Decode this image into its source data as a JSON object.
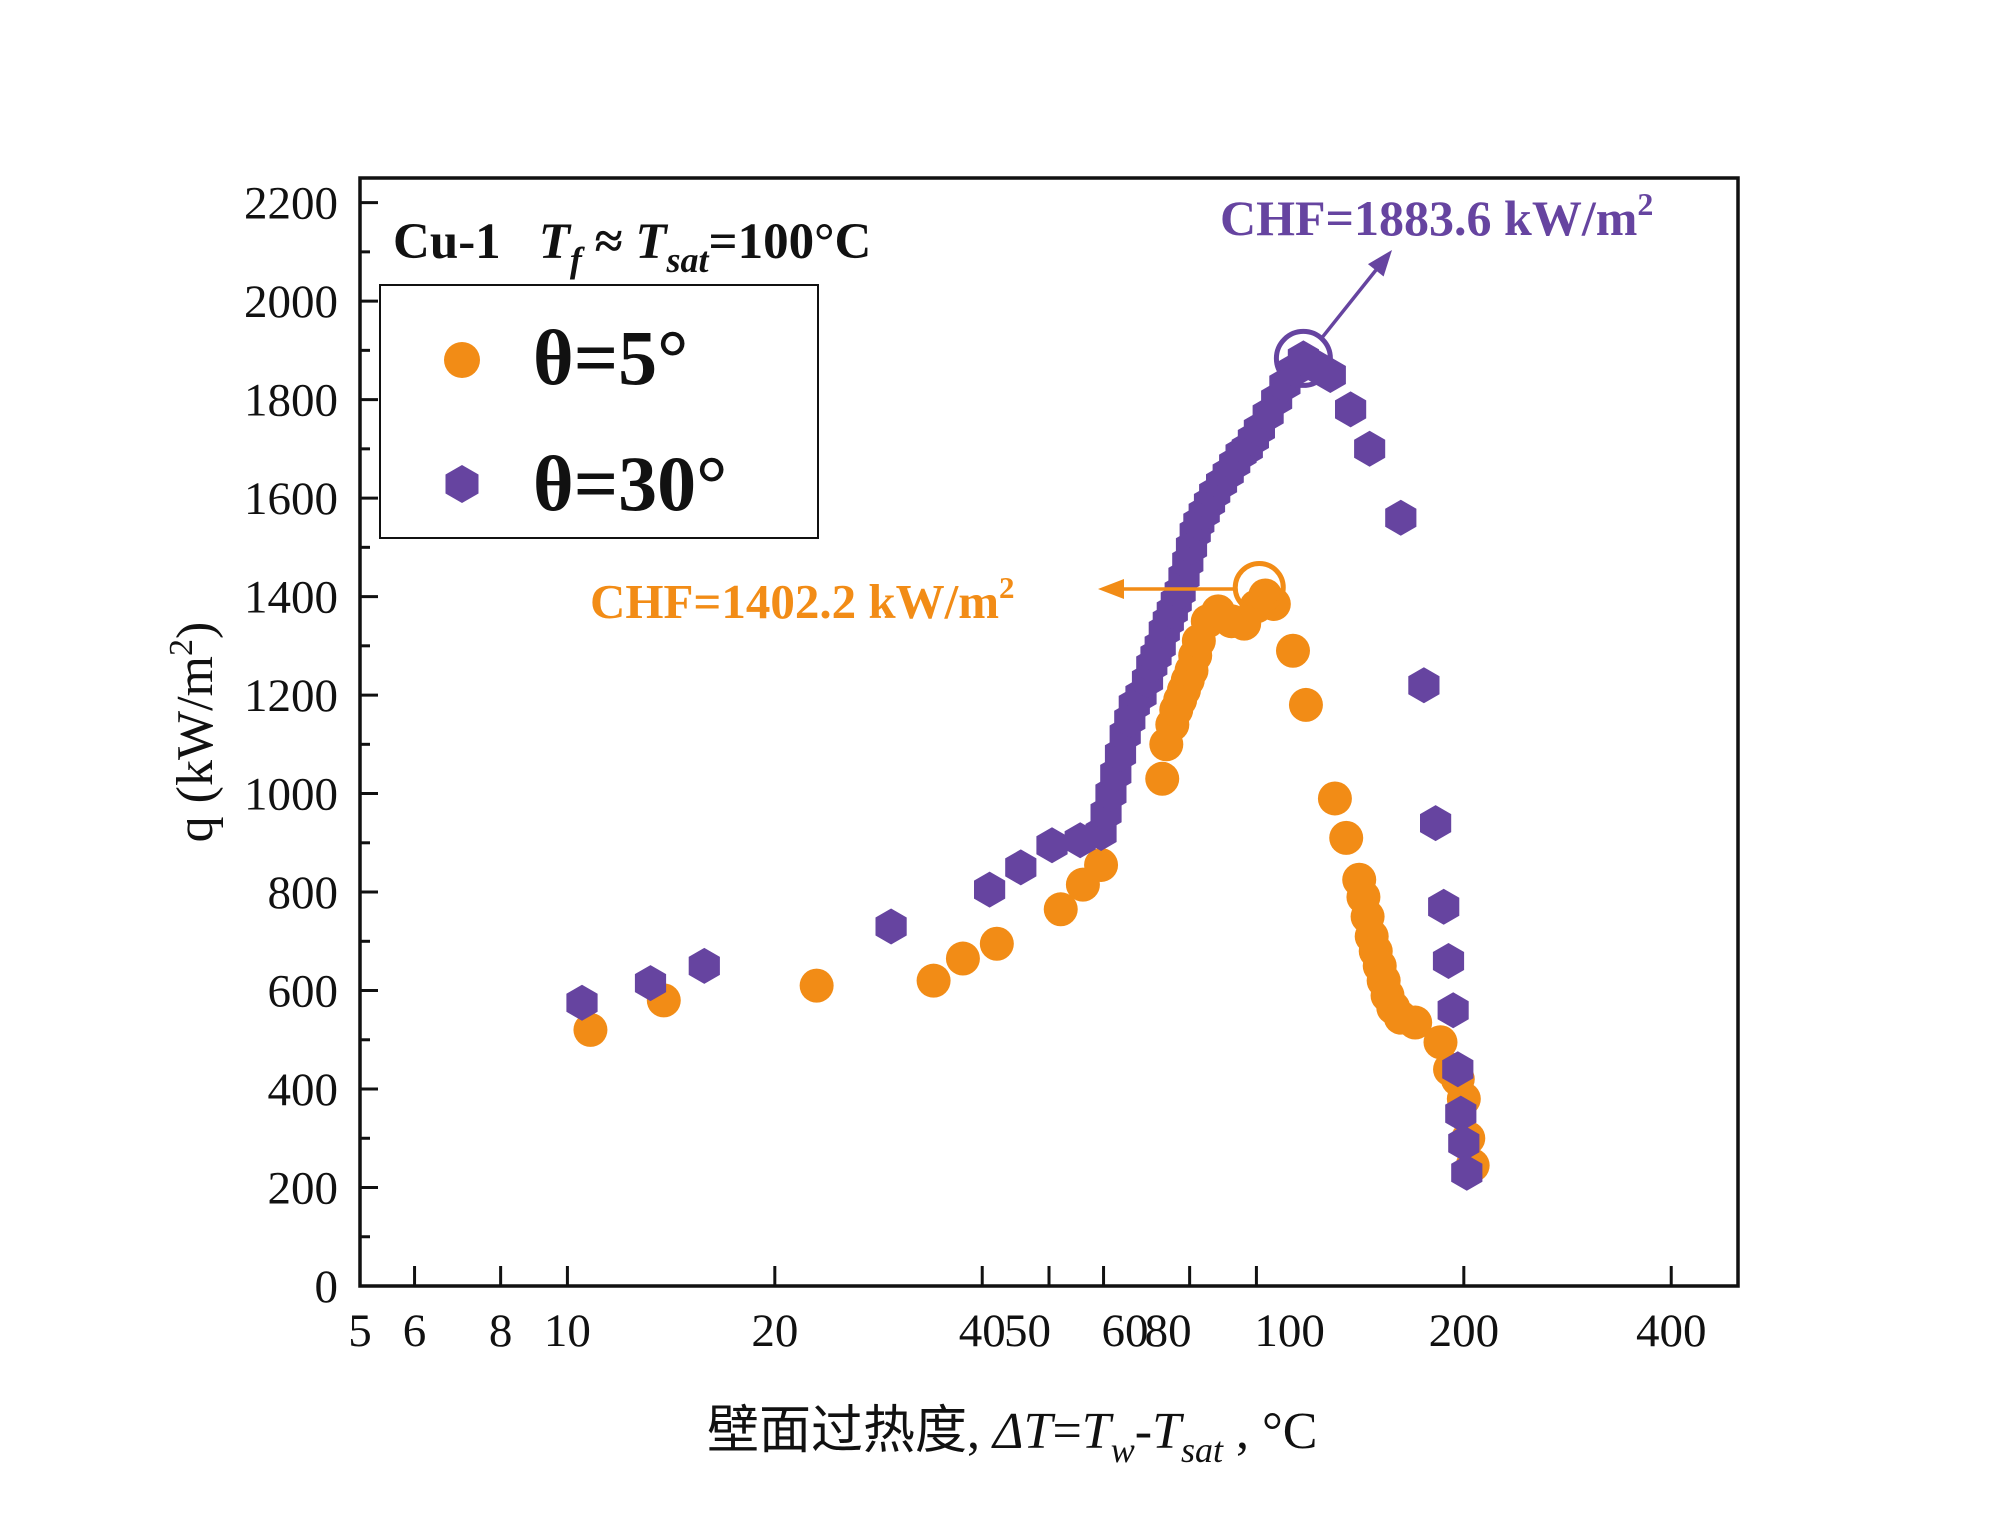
{
  "chart_data": {
    "type": "scatter",
    "title": "Cu-1",
    "condition": {
      "label": "Cu-1",
      "expression": [
        "T",
        "f",
        " ≈ ",
        "T",
        "sat",
        "=100°C"
      ]
    },
    "xlabel": {
      "prefix": "壁面过热度, ",
      "parts": [
        "ΔT",
        "=",
        "T",
        "w",
        "-",
        "T",
        "sat",
        " , °C"
      ]
    },
    "ylabel": {
      "text": "q (kW/m",
      "sup": "2",
      "close": ")"
    },
    "xscale": "log",
    "xlim": [
      5,
      500
    ],
    "ylim": [
      0,
      2250
    ],
    "x_ticks": [
      5,
      6,
      8,
      10,
      20,
      40,
      50,
      60,
      80,
      100,
      200,
      400
    ],
    "x_tick_labels": [
      "5",
      "6",
      "8",
      "10",
      "20",
      "40",
      "50",
      "60",
      "80",
      "100",
      "200",
      "400"
    ],
    "y_ticks": [
      0,
      200,
      400,
      600,
      800,
      1000,
      1200,
      1400,
      1600,
      1800,
      2000,
      2200
    ],
    "y_tick_labels": [
      "0",
      "200",
      "400",
      "600",
      "800",
      "1000",
      "1200",
      "1400",
      "1600",
      "1800",
      "2000",
      "2200"
    ],
    "legend_position": "top-left",
    "series": [
      {
        "name": "θ=5°",
        "marker": "circle",
        "color": "#F28C16",
        "x": [
          10.8,
          13.8,
          23.0,
          34.0,
          37.5,
          42.0,
          52.0,
          56.0,
          59.5,
          73.0,
          74.0,
          75.5,
          76.5,
          77.5,
          78.5,
          79.5,
          80.5,
          81.5,
          82.5,
          85.0,
          88.0,
          92.0,
          96.0,
          100.0,
          103.0,
          106.0,
          113.0,
          118.0,
          130.0,
          135.0,
          141.0,
          143.0,
          145.0,
          147.0,
          149.0,
          151.0,
          153.0,
          155.0,
          158.0,
          162.0,
          170.0,
          185.0,
          191.0,
          196.0,
          200.0,
          203.0,
          206.0
        ],
        "y": [
          520,
          580,
          610,
          620,
          665,
          695,
          765,
          815,
          855,
          1030,
          1100,
          1140,
          1170,
          1190,
          1210,
          1230,
          1250,
          1280,
          1310,
          1350,
          1370,
          1350,
          1345,
          1380,
          1402.2,
          1385,
          1290,
          1180,
          990,
          910,
          825,
          790,
          750,
          710,
          680,
          650,
          620,
          590,
          565,
          545,
          535,
          495,
          440,
          420,
          380,
          300,
          245
        ]
      },
      {
        "name": "θ=30°",
        "marker": "hexagon",
        "color": "#6644A0",
        "x": [
          10.5,
          13.2,
          15.8,
          29.5,
          41.0,
          45.5,
          50.5,
          55.5,
          59.5,
          60.5,
          61.5,
          62.5,
          63.5,
          64.5,
          65.5,
          66.5,
          68.0,
          69.5,
          70.5,
          71.5,
          72.5,
          73.5,
          74.5,
          75.5,
          76.5,
          77.5,
          78.5,
          79.5,
          80.5,
          81.5,
          82.5,
          84.0,
          85.5,
          87.0,
          89.0,
          91.0,
          93.0,
          95.0,
          97.0,
          99.0,
          101.0,
          104.0,
          107.0,
          110.0,
          113.5,
          117.0,
          121.0,
          128.0,
          137.0,
          146.0,
          162.0,
          175.0,
          182.0,
          187.0,
          190.0,
          193.0,
          196.0,
          198.0,
          200.0,
          202.0
        ],
        "y": [
          575,
          615,
          650,
          730,
          805,
          850,
          895,
          905,
          920,
          960,
          1000,
          1040,
          1080,
          1120,
          1150,
          1180,
          1200,
          1230,
          1260,
          1280,
          1300,
          1330,
          1350,
          1370,
          1390,
          1410,
          1440,
          1470,
          1500,
          1530,
          1550,
          1570,
          1590,
          1610,
          1630,
          1650,
          1670,
          1690,
          1700,
          1720,
          1740,
          1770,
          1800,
          1830,
          1860,
          1883.6,
          1870,
          1850,
          1780,
          1700,
          1560,
          1220,
          940,
          770,
          660,
          560,
          440,
          350,
          290,
          230
        ]
      }
    ],
    "annotations": [
      {
        "text": "CHF=1883.6 kW/m",
        "sup": "2",
        "color": "#6644A0",
        "at_x": 117.0,
        "at_y": 1883.6
      },
      {
        "text": "CHF=1402.2 kW/m",
        "sup": "2",
        "color": "#F28C16",
        "at_x": 103.0,
        "at_y": 1402.2
      }
    ]
  }
}
